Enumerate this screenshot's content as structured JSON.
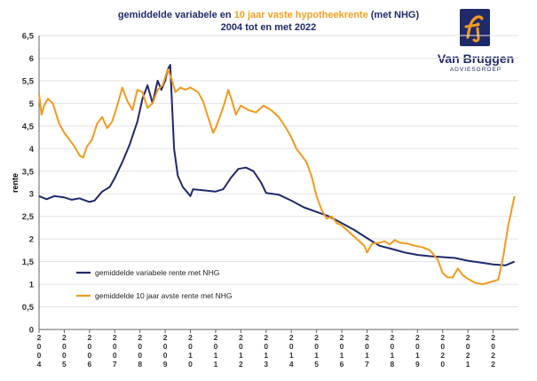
{
  "title": {
    "line1_a": "gemiddelde variabele en ",
    "line1_b": "10 jaar vaste hypotheekrente",
    "line1_c": " (met NHG)",
    "line2": "2004 tot en met 2022"
  },
  "logo": {
    "name": "Van Bruggen",
    "sub": "ADVIESGROEP"
  },
  "colors": {
    "variable": "#1f2a6b",
    "fixed": "#f39a1e",
    "grid": "#e3e3e3",
    "axis": "#666666"
  },
  "chart_data": {
    "type": "line",
    "ylabel": "rente",
    "ylim": [
      0,
      6.5
    ],
    "yticks": [
      "0",
      "0,5",
      "1",
      "1,5",
      "2",
      "2,5",
      "3",
      "3,5",
      "4",
      "4,5",
      "5",
      "5,5",
      "6",
      "6,5"
    ],
    "xlim": [
      2004,
      2023
    ],
    "xticks": [
      "2004",
      "2005",
      "2006",
      "2007",
      "2008",
      "2009",
      "2010",
      "2011",
      "2012",
      "2013",
      "2014",
      "2015",
      "2016",
      "2017",
      "2018",
      "2019",
      "2020",
      "2021",
      "2022"
    ],
    "grid": true,
    "legend": "lower-left",
    "series": [
      {
        "name": "gemiddelde variabele rente met NHG",
        "color": "#1f2a6b",
        "points": [
          [
            2004.0,
            2.95
          ],
          [
            2004.3,
            2.88
          ],
          [
            2004.6,
            2.95
          ],
          [
            2005.0,
            2.92
          ],
          [
            2005.3,
            2.87
          ],
          [
            2005.6,
            2.9
          ],
          [
            2006.0,
            2.82
          ],
          [
            2006.2,
            2.85
          ],
          [
            2006.5,
            3.05
          ],
          [
            2006.8,
            3.15
          ],
          [
            2007.0,
            3.35
          ],
          [
            2007.3,
            3.7
          ],
          [
            2007.6,
            4.1
          ],
          [
            2007.9,
            4.6
          ],
          [
            2008.1,
            5.1
          ],
          [
            2008.3,
            5.4
          ],
          [
            2008.5,
            5.0
          ],
          [
            2008.7,
            5.5
          ],
          [
            2008.85,
            5.3
          ],
          [
            2009.0,
            5.5
          ],
          [
            2009.1,
            5.75
          ],
          [
            2009.2,
            5.85
          ],
          [
            2009.35,
            4.0
          ],
          [
            2009.5,
            3.4
          ],
          [
            2009.7,
            3.15
          ],
          [
            2009.85,
            3.05
          ],
          [
            2010.0,
            2.95
          ],
          [
            2010.1,
            3.1
          ],
          [
            2010.5,
            3.08
          ],
          [
            2011.0,
            3.05
          ],
          [
            2011.3,
            3.1
          ],
          [
            2011.6,
            3.35
          ],
          [
            2011.9,
            3.55
          ],
          [
            2012.2,
            3.58
          ],
          [
            2012.5,
            3.5
          ],
          [
            2012.8,
            3.25
          ],
          [
            2013.0,
            3.02
          ],
          [
            2013.5,
            2.98
          ],
          [
            2014.0,
            2.85
          ],
          [
            2014.5,
            2.7
          ],
          [
            2015.0,
            2.6
          ],
          [
            2015.5,
            2.5
          ],
          [
            2016.0,
            2.35
          ],
          [
            2016.5,
            2.2
          ],
          [
            2017.0,
            2.02
          ],
          [
            2017.5,
            1.85
          ],
          [
            2018.0,
            1.78
          ],
          [
            2018.5,
            1.7
          ],
          [
            2019.0,
            1.65
          ],
          [
            2019.5,
            1.62
          ],
          [
            2020.0,
            1.6
          ],
          [
            2020.5,
            1.58
          ],
          [
            2021.0,
            1.52
          ],
          [
            2021.5,
            1.48
          ],
          [
            2022.0,
            1.44
          ],
          [
            2022.5,
            1.42
          ],
          [
            2022.85,
            1.5
          ]
        ]
      },
      {
        "name": "gemiddelde 10 jaar avste rente met NHG",
        "color": "#f39a1e",
        "points": [
          [
            2004.0,
            5.2
          ],
          [
            2004.1,
            4.75
          ],
          [
            2004.2,
            4.95
          ],
          [
            2004.35,
            5.1
          ],
          [
            2004.55,
            5.0
          ],
          [
            2004.8,
            4.55
          ],
          [
            2005.0,
            4.35
          ],
          [
            2005.2,
            4.2
          ],
          [
            2005.4,
            4.05
          ],
          [
            2005.6,
            3.85
          ],
          [
            2005.75,
            3.8
          ],
          [
            2005.9,
            4.05
          ],
          [
            2006.1,
            4.2
          ],
          [
            2006.3,
            4.55
          ],
          [
            2006.5,
            4.7
          ],
          [
            2006.7,
            4.45
          ],
          [
            2006.9,
            4.6
          ],
          [
            2007.1,
            4.95
          ],
          [
            2007.3,
            5.35
          ],
          [
            2007.5,
            5.05
          ],
          [
            2007.7,
            4.85
          ],
          [
            2007.9,
            5.3
          ],
          [
            2008.1,
            5.25
          ],
          [
            2008.3,
            4.9
          ],
          [
            2008.5,
            5.0
          ],
          [
            2008.7,
            5.3
          ],
          [
            2008.9,
            5.4
          ],
          [
            2009.1,
            5.75
          ],
          [
            2009.25,
            5.55
          ],
          [
            2009.4,
            5.25
          ],
          [
            2009.6,
            5.35
          ],
          [
            2009.8,
            5.3
          ],
          [
            2010.0,
            5.35
          ],
          [
            2010.3,
            5.25
          ],
          [
            2010.5,
            5.05
          ],
          [
            2010.7,
            4.7
          ],
          [
            2010.9,
            4.35
          ],
          [
            2011.0,
            4.45
          ],
          [
            2011.2,
            4.75
          ],
          [
            2011.35,
            5.0
          ],
          [
            2011.5,
            5.3
          ],
          [
            2011.65,
            5.05
          ],
          [
            2011.8,
            4.75
          ],
          [
            2012.0,
            4.95
          ],
          [
            2012.3,
            4.85
          ],
          [
            2012.6,
            4.8
          ],
          [
            2012.9,
            4.95
          ],
          [
            2013.2,
            4.85
          ],
          [
            2013.5,
            4.7
          ],
          [
            2013.8,
            4.45
          ],
          [
            2014.0,
            4.25
          ],
          [
            2014.2,
            4.0
          ],
          [
            2014.4,
            3.85
          ],
          [
            2014.6,
            3.7
          ],
          [
            2014.8,
            3.4
          ],
          [
            2015.0,
            2.95
          ],
          [
            2015.2,
            2.65
          ],
          [
            2015.4,
            2.45
          ],
          [
            2015.6,
            2.5
          ],
          [
            2015.8,
            2.35
          ],
          [
            2016.0,
            2.3
          ],
          [
            2016.3,
            2.15
          ],
          [
            2016.6,
            2.0
          ],
          [
            2016.9,
            1.85
          ],
          [
            2017.0,
            1.7
          ],
          [
            2017.2,
            1.9
          ],
          [
            2017.5,
            1.92
          ],
          [
            2017.7,
            1.95
          ],
          [
            2017.9,
            1.88
          ],
          [
            2018.1,
            1.98
          ],
          [
            2018.3,
            1.92
          ],
          [
            2018.6,
            1.9
          ],
          [
            2018.9,
            1.85
          ],
          [
            2019.2,
            1.82
          ],
          [
            2019.5,
            1.75
          ],
          [
            2019.8,
            1.55
          ],
          [
            2020.0,
            1.25
          ],
          [
            2020.2,
            1.15
          ],
          [
            2020.4,
            1.15
          ],
          [
            2020.6,
            1.35
          ],
          [
            2020.8,
            1.2
          ],
          [
            2021.0,
            1.12
          ],
          [
            2021.3,
            1.03
          ],
          [
            2021.6,
            1.0
          ],
          [
            2021.9,
            1.05
          ],
          [
            2022.2,
            1.1
          ],
          [
            2022.4,
            1.6
          ],
          [
            2022.6,
            2.3
          ],
          [
            2022.85,
            2.95
          ]
        ]
      }
    ]
  }
}
